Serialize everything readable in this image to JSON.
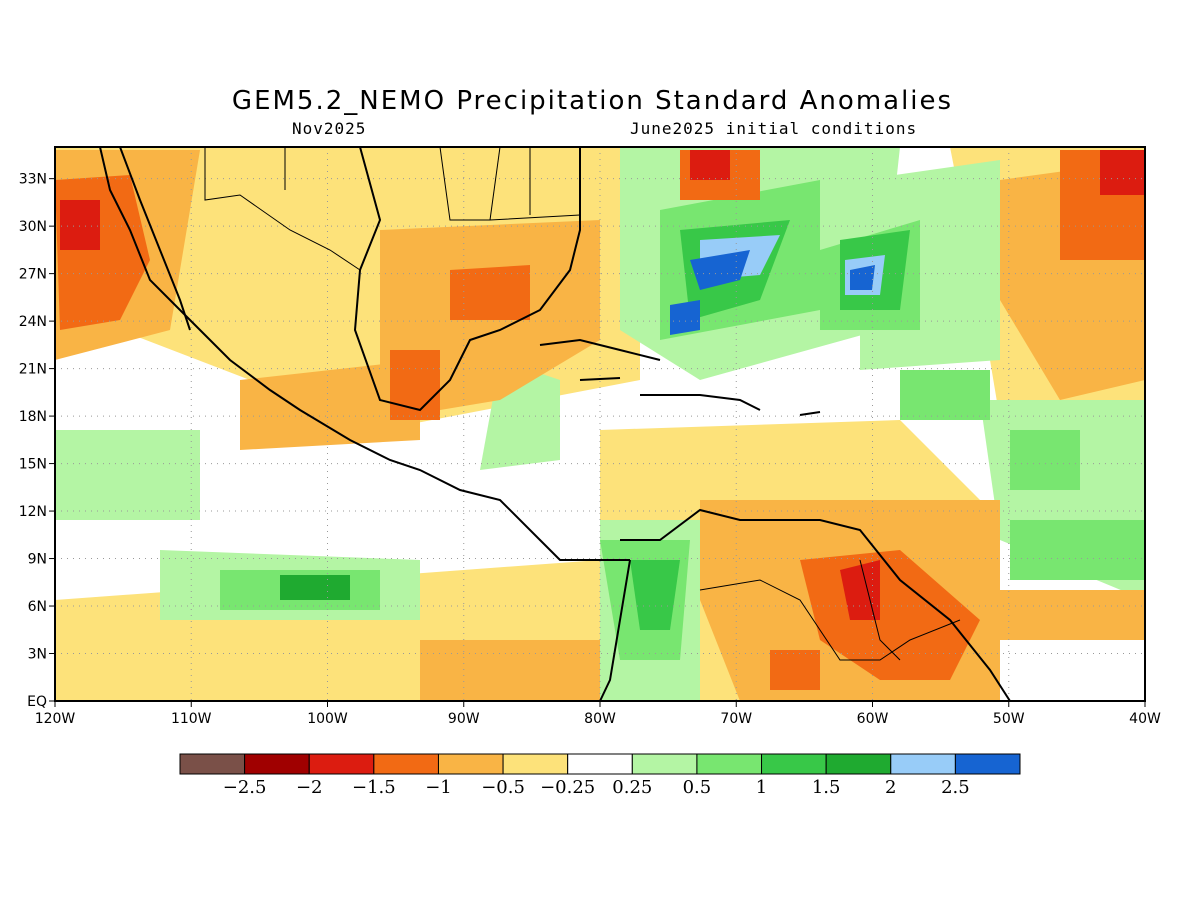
{
  "title": "GEM5.2_NEMO Precipitation Standard Anomalies",
  "subtitle_left": "Nov2025",
  "subtitle_right": "June2025 initial conditions",
  "map": {
    "lon_range": [
      -120,
      -40
    ],
    "lat_range": [
      0,
      35
    ],
    "x_ticks": [
      "120W",
      "110W",
      "100W",
      "90W",
      "80W",
      "70W",
      "60W",
      "50W",
      "40W"
    ],
    "y_ticks": [
      "EQ",
      "3N",
      "6N",
      "9N",
      "12N",
      "15N",
      "18N",
      "21N",
      "24N",
      "27N",
      "30N",
      "33N"
    ],
    "grid": "dotted"
  },
  "colorbar": {
    "labels": [
      "-2.5",
      "-2",
      "-1.5",
      "-1",
      "-0.5",
      "-0.25",
      "0.25",
      "0.5",
      "1",
      "1.5",
      "2",
      "2.5"
    ],
    "colors": [
      "#7a5048",
      "#a00000",
      "#dc1c10",
      "#f26a14",
      "#f9b445",
      "#fde27a",
      "#ffffff",
      "#b4f5a4",
      "#78e670",
      "#38c848",
      "#1faa30",
      "#98ccf8",
      "#1664d2"
    ]
  }
}
